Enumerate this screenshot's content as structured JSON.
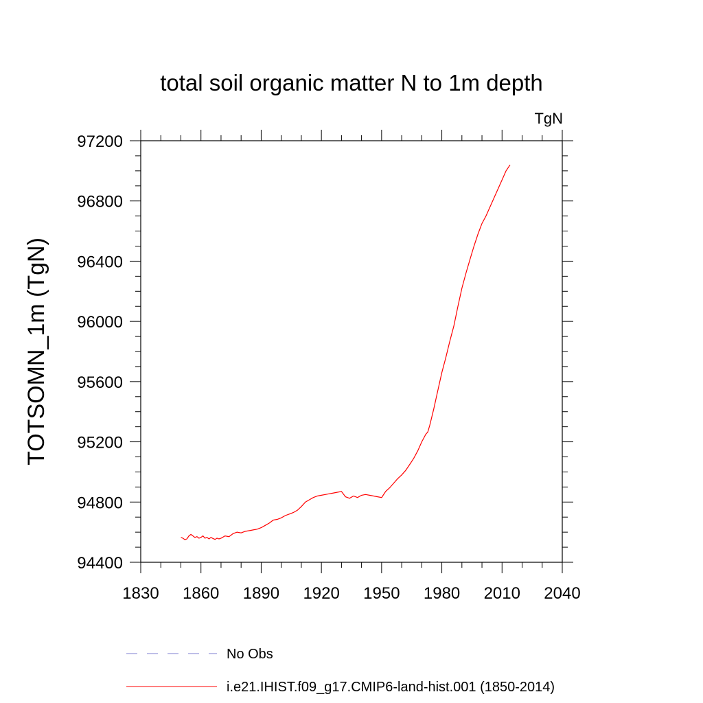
{
  "chart_data": {
    "type": "line",
    "title": "total soil organic matter N to 1m depth",
    "units_label": "TgN",
    "ylabel": "TOTSOMN_1m  (TgN)",
    "xlabel": "",
    "xlim": [
      1830,
      2040
    ],
    "ylim": [
      94400,
      97200
    ],
    "xticks": [
      1830,
      1860,
      1890,
      1920,
      1950,
      1980,
      2010,
      2040
    ],
    "yticks": [
      94400,
      94800,
      95200,
      95600,
      96000,
      96400,
      96800,
      97200
    ],
    "grid": false,
    "legend_position": "bottom",
    "series": [
      {
        "name": "No Obs",
        "color": "#7f7fd0",
        "dash": true,
        "x": [],
        "y": []
      },
      {
        "name": "i.e21.IHIST.f09_g17.CMIP6-land-hist.001 (1850-2014)",
        "color": "#ff0000",
        "dash": false,
        "x": [
          1850,
          1851,
          1852,
          1853,
          1854,
          1855,
          1856,
          1857,
          1858,
          1859,
          1860,
          1861,
          1862,
          1863,
          1864,
          1865,
          1866,
          1867,
          1868,
          1869,
          1870,
          1872,
          1874,
          1876,
          1878,
          1880,
          1882,
          1884,
          1886,
          1888,
          1890,
          1892,
          1894,
          1896,
          1898,
          1900,
          1902,
          1904,
          1906,
          1908,
          1910,
          1912,
          1914,
          1916,
          1918,
          1920,
          1922,
          1924,
          1926,
          1928,
          1930,
          1932,
          1934,
          1936,
          1938,
          1940,
          1942,
          1944,
          1946,
          1948,
          1950,
          1952,
          1954,
          1956,
          1958,
          1960,
          1962,
          1964,
          1966,
          1968,
          1970,
          1972,
          1973,
          1974,
          1976,
          1978,
          1980,
          1982,
          1984,
          1986,
          1988,
          1990,
          1992,
          1994,
          1996,
          1998,
          2000,
          2002,
          2004,
          2006,
          2008,
          2010,
          2012,
          2014
        ],
        "y": [
          94565,
          94560,
          94550,
          94555,
          94575,
          94585,
          94575,
          94565,
          94570,
          94560,
          94565,
          94575,
          94560,
          94565,
          94555,
          94565,
          94558,
          94552,
          94560,
          94555,
          94560,
          94575,
          94570,
          94590,
          94600,
          94595,
          94605,
          94610,
          94615,
          94620,
          94630,
          94645,
          94660,
          94680,
          94685,
          94695,
          94710,
          94720,
          94730,
          94745,
          94770,
          94800,
          94815,
          94830,
          94840,
          94845,
          94850,
          94855,
          94860,
          94865,
          94870,
          94835,
          94825,
          94840,
          94830,
          94845,
          94850,
          94845,
          94840,
          94835,
          94830,
          94870,
          94895,
          94925,
          94955,
          94980,
          95010,
          95050,
          95090,
          95140,
          95200,
          95250,
          95265,
          95310,
          95420,
          95540,
          95660,
          95760,
          95870,
          95970,
          96100,
          96220,
          96320,
          96410,
          96500,
          96580,
          96650,
          96700,
          96760,
          96820,
          96880,
          96940,
          97000,
          97040
        ]
      }
    ]
  }
}
